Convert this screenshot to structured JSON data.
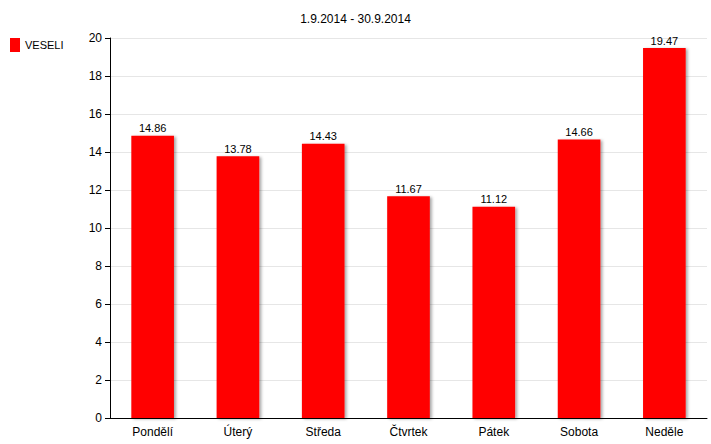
{
  "chart_data": {
    "type": "bar",
    "title": "1.9.2014 - 30.9.2014",
    "categories": [
      "Pondělí",
      "Úterý",
      "Středa",
      "Čtvrtek",
      "Pátek",
      "Sobota",
      "Neděle"
    ],
    "series": [
      {
        "name": "VESELI",
        "color": "#ff0000",
        "values": [
          14.86,
          13.78,
          14.43,
          11.67,
          11.12,
          14.66,
          19.47
        ]
      }
    ],
    "ylim": [
      0,
      20
    ],
    "yticks": [
      0,
      2,
      4,
      6,
      8,
      10,
      12,
      14,
      16,
      18,
      20
    ],
    "grid": true,
    "legend": "top-left",
    "data_labels": true
  }
}
